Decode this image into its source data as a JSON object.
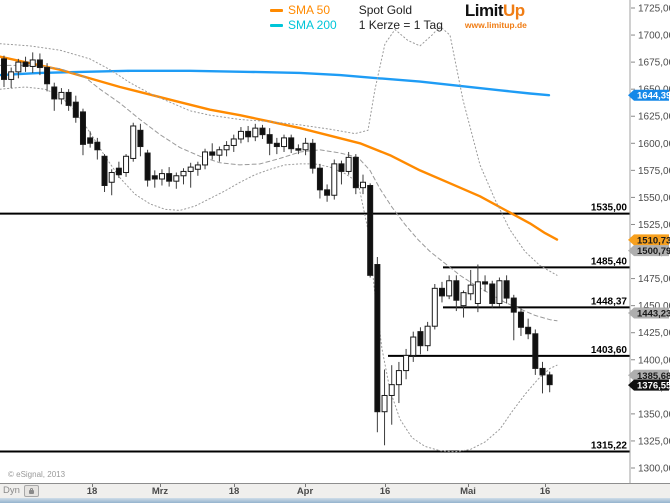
{
  "legend": {
    "sma50_label": "SMA 50",
    "sma200_label": "SMA 200",
    "symbol": "Spot Gold",
    "interval": "1 Kerze = 1 Tag"
  },
  "logo": {
    "part1": "Limit",
    "part2": "Up",
    "url": "www.limitup.de"
  },
  "footer": {
    "copyright": "© eSignal, 2013",
    "dyn_label": "Dyn"
  },
  "colors": {
    "sma50": "#ff8a00",
    "sma200_line": "#1e9cf5",
    "sma200_legend": "#00c5d8",
    "band": "#9a9a9a",
    "candle_black": "#101010",
    "candle_white": "#ffffff",
    "level_line": "#000000",
    "axis_text": "#4d4d4d",
    "axis_separator": "#a0a0a0",
    "logo_orange": "#f07d15"
  },
  "price_axis": {
    "tick_min": 1300,
    "tick_max": 1725,
    "tick_step": 25,
    "tags": [
      {
        "label": "1644,39",
        "price": 1644.39,
        "bg": "#1588e8",
        "fg": "#ffffff",
        "name": "sma200-price-tag"
      },
      {
        "label": "1510,73",
        "price": 1510.73,
        "bg": "#f7a01e",
        "fg": "#1a1a1a",
        "name": "sma50-price-tag"
      },
      {
        "label": "1500,79",
        "price": 1500.79,
        "bg": "#aeaeae",
        "fg": "#1a1a1a",
        "name": "indicator-price-tag"
      },
      {
        "label": "1443,23",
        "price": 1443.23,
        "bg": "#aeaeae",
        "fg": "#1a1a1a",
        "name": "indicator-price-tag"
      },
      {
        "label": "1385,68",
        "price": 1385.68,
        "bg": "#aeaeae",
        "fg": "#1a1a1a",
        "name": "indicator-price-tag"
      },
      {
        "label": "1376,55",
        "price": 1376.55,
        "bg": "#101010",
        "fg": "#ffffff",
        "name": "last-price-tag"
      }
    ]
  },
  "time_axis": {
    "labels": [
      {
        "text": "18",
        "x": 92
      },
      {
        "text": "Mrz",
        "x": 160
      },
      {
        "text": "18",
        "x": 234
      },
      {
        "text": "Apr",
        "x": 305
      },
      {
        "text": "16",
        "x": 385
      },
      {
        "text": "Mai",
        "x": 468
      },
      {
        "text": "16",
        "x": 545
      }
    ]
  },
  "chart_data": {
    "type": "candlestick",
    "title": "Spot Gold",
    "subtitle": "1 Kerze = 1 Tag",
    "x_tick_labels": [
      "18",
      "Mrz",
      "18",
      "Apr",
      "16",
      "Mai",
      "16"
    ],
    "y_range": [
      1292,
      1732
    ],
    "y_ticks_step": 25,
    "grid": false,
    "last_price": 1376.55,
    "levels": [
      {
        "label": "1535,00",
        "price": 1535.0,
        "x_start": 0
      },
      {
        "label": "1485,40",
        "price": 1485.4,
        "x_start": 443
      },
      {
        "label": "1448,37",
        "price": 1448.37,
        "x_start": 443
      },
      {
        "label": "1403,60",
        "price": 1403.6,
        "x_start": 388
      },
      {
        "label": "1315,22",
        "price": 1315.22,
        "x_start": 0
      }
    ],
    "candles_format": [
      "open",
      "high",
      "low",
      "close"
    ],
    "candles": [
      [
        1678,
        1681,
        1652,
        1659
      ],
      [
        1659,
        1670,
        1651,
        1666
      ],
      [
        1666,
        1678,
        1660,
        1675
      ],
      [
        1675,
        1680,
        1666,
        1671
      ],
      [
        1671,
        1684,
        1665,
        1677
      ],
      [
        1677,
        1683,
        1663,
        1670
      ],
      [
        1670,
        1674,
        1648,
        1655
      ],
      [
        1652,
        1656,
        1630,
        1641
      ],
      [
        1641,
        1651,
        1636,
        1647
      ],
      [
        1647,
        1650,
        1630,
        1635
      ],
      [
        1638,
        1644,
        1619,
        1624
      ],
      [
        1629,
        1632,
        1589,
        1599
      ],
      [
        1605,
        1611,
        1596,
        1600
      ],
      [
        1601,
        1605,
        1585,
        1594
      ],
      [
        1588,
        1590,
        1555,
        1561
      ],
      [
        1564,
        1576,
        1552,
        1573
      ],
      [
        1577,
        1583,
        1568,
        1571
      ],
      [
        1573,
        1590,
        1569,
        1588
      ],
      [
        1586,
        1619,
        1583,
        1616
      ],
      [
        1612,
        1618,
        1588,
        1597
      ],
      [
        1591,
        1594,
        1560,
        1566
      ],
      [
        1570,
        1575,
        1559,
        1567
      ],
      [
        1567,
        1576,
        1561,
        1572
      ],
      [
        1572,
        1578,
        1560,
        1565
      ],
      [
        1565,
        1573,
        1558,
        1570
      ],
      [
        1570,
        1577,
        1562,
        1574
      ],
      [
        1574,
        1582,
        1559,
        1578
      ],
      [
        1576,
        1583,
        1570,
        1580
      ],
      [
        1580,
        1595,
        1576,
        1592
      ],
      [
        1592,
        1600,
        1585,
        1589
      ],
      [
        1589,
        1597,
        1583,
        1594
      ],
      [
        1594,
        1602,
        1588,
        1598
      ],
      [
        1598,
        1608,
        1592,
        1604
      ],
      [
        1604,
        1615,
        1600,
        1611
      ],
      [
        1611,
        1616,
        1601,
        1606
      ],
      [
        1606,
        1618,
        1602,
        1614
      ],
      [
        1614,
        1617,
        1604,
        1608
      ],
      [
        1608,
        1614,
        1589,
        1600
      ],
      [
        1600,
        1605,
        1590,
        1597
      ],
      [
        1597,
        1608,
        1592,
        1605
      ],
      [
        1605,
        1608,
        1591,
        1595
      ],
      [
        1595,
        1599,
        1590,
        1594
      ],
      [
        1594,
        1605,
        1589,
        1600
      ],
      [
        1600,
        1604,
        1572,
        1577
      ],
      [
        1577,
        1581,
        1549,
        1557
      ],
      [
        1557,
        1562,
        1546,
        1552
      ],
      [
        1552,
        1585,
        1548,
        1581
      ],
      [
        1581,
        1584,
        1562,
        1574
      ],
      [
        1574,
        1592,
        1571,
        1587
      ],
      [
        1587,
        1590,
        1553,
        1559
      ],
      [
        1559,
        1571,
        1553,
        1564
      ],
      [
        1561,
        1563,
        1476,
        1478
      ],
      [
        1488,
        1495,
        1333,
        1352
      ],
      [
        1352,
        1391,
        1321,
        1367
      ],
      [
        1367,
        1395,
        1340,
        1377
      ],
      [
        1377,
        1398,
        1360,
        1390
      ],
      [
        1390,
        1410,
        1382,
        1404
      ],
      [
        1404,
        1426,
        1398,
        1421
      ],
      [
        1426,
        1430,
        1405,
        1413
      ],
      [
        1413,
        1435,
        1408,
        1431
      ],
      [
        1431,
        1470,
        1428,
        1466
      ],
      [
        1466,
        1472,
        1453,
        1459
      ],
      [
        1459,
        1478,
        1456,
        1473
      ],
      [
        1473,
        1478,
        1445,
        1455
      ],
      [
        1450,
        1464,
        1439,
        1462
      ],
      [
        1461,
        1483,
        1455,
        1469
      ],
      [
        1452,
        1488,
        1444,
        1472
      ],
      [
        1472,
        1478,
        1463,
        1470
      ],
      [
        1470,
        1473,
        1448,
        1452
      ],
      [
        1452,
        1476,
        1449,
        1473
      ],
      [
        1473,
        1478,
        1452,
        1457
      ],
      [
        1457,
        1460,
        1418,
        1444
      ],
      [
        1444,
        1448,
        1422,
        1430
      ],
      [
        1430,
        1438,
        1419,
        1424
      ],
      [
        1424,
        1428,
        1386,
        1392
      ],
      [
        1392,
        1398,
        1369,
        1386
      ],
      [
        1386,
        1389,
        1370,
        1377
      ]
    ],
    "series": [
      {
        "name": "SMA 200",
        "style": "solid",
        "color": "#1e9cf5",
        "width": 2.4,
        "points": [
          [
            0,
            1663
          ],
          [
            40,
            1665
          ],
          [
            80,
            1666
          ],
          [
            130,
            1667
          ],
          [
            190,
            1667
          ],
          [
            250,
            1666
          ],
          [
            300,
            1665
          ],
          [
            340,
            1663
          ],
          [
            380,
            1660
          ],
          [
            420,
            1657
          ],
          [
            460,
            1653
          ],
          [
            500,
            1649
          ],
          [
            530,
            1646
          ],
          [
            549,
            1644.4
          ]
        ]
      },
      {
        "name": "SMA 50",
        "style": "solid",
        "color": "#ff8a00",
        "width": 2.4,
        "points": [
          [
            0,
            1680
          ],
          [
            30,
            1674
          ],
          [
            60,
            1668
          ],
          [
            90,
            1660
          ],
          [
            120,
            1652
          ],
          [
            150,
            1645
          ],
          [
            180,
            1638
          ],
          [
            210,
            1631
          ],
          [
            240,
            1626
          ],
          [
            270,
            1620
          ],
          [
            300,
            1614
          ],
          [
            330,
            1607
          ],
          [
            360,
            1600
          ],
          [
            390,
            1589
          ],
          [
            420,
            1575
          ],
          [
            450,
            1563
          ],
          [
            480,
            1551
          ],
          [
            510,
            1536
          ],
          [
            530,
            1526
          ],
          [
            545,
            1517
          ],
          [
            557,
            1511
          ]
        ]
      },
      {
        "name": "Band oben",
        "style": "dotted",
        "color": "#9a9a9a",
        "width": 1,
        "points": [
          [
            0,
            1692
          ],
          [
            30,
            1690
          ],
          [
            60,
            1686
          ],
          [
            90,
            1678
          ],
          [
            110,
            1668
          ],
          [
            130,
            1656
          ],
          [
            150,
            1646
          ],
          [
            170,
            1638
          ],
          [
            190,
            1630
          ],
          [
            210,
            1626
          ],
          [
            240,
            1622
          ],
          [
            270,
            1620
          ],
          [
            300,
            1617
          ],
          [
            330,
            1613
          ],
          [
            355,
            1609
          ],
          [
            368,
            1612
          ],
          [
            375,
            1650
          ],
          [
            385,
            1692
          ],
          [
            395,
            1705
          ],
          [
            408,
            1695
          ],
          [
            420,
            1690
          ],
          [
            432,
            1700
          ],
          [
            440,
            1708
          ],
          [
            450,
            1700
          ],
          [
            463,
            1640
          ],
          [
            480,
            1580
          ],
          [
            495,
            1548
          ],
          [
            510,
            1520
          ],
          [
            525,
            1500
          ],
          [
            540,
            1487
          ],
          [
            557,
            1478
          ]
        ]
      },
      {
        "name": "Band mitte",
        "style": "dashed",
        "color": "#9a9a9a",
        "width": 1,
        "points": [
          [
            0,
            1672
          ],
          [
            30,
            1672
          ],
          [
            60,
            1669
          ],
          [
            85,
            1661
          ],
          [
            100,
            1650
          ],
          [
            120,
            1637
          ],
          [
            140,
            1622
          ],
          [
            160,
            1608
          ],
          [
            180,
            1596
          ],
          [
            200,
            1588
          ],
          [
            220,
            1582
          ],
          [
            240,
            1580
          ],
          [
            260,
            1581
          ],
          [
            280,
            1586
          ],
          [
            300,
            1592
          ],
          [
            320,
            1594
          ],
          [
            340,
            1591
          ],
          [
            358,
            1587
          ],
          [
            370,
            1575
          ],
          [
            380,
            1558
          ],
          [
            392,
            1541
          ],
          [
            405,
            1525
          ],
          [
            418,
            1511
          ],
          [
            430,
            1500
          ],
          [
            445,
            1489
          ],
          [
            460,
            1478
          ],
          [
            475,
            1469
          ],
          [
            490,
            1461
          ],
          [
            505,
            1453
          ],
          [
            520,
            1447
          ],
          [
            535,
            1441
          ],
          [
            550,
            1437
          ],
          [
            557,
            1436
          ]
        ]
      },
      {
        "name": "Band unten",
        "style": "dotted",
        "color": "#9a9a9a",
        "width": 1,
        "points": [
          [
            0,
            1650
          ],
          [
            25,
            1652
          ],
          [
            45,
            1650
          ],
          [
            60,
            1644
          ],
          [
            75,
            1630
          ],
          [
            90,
            1610
          ],
          [
            105,
            1588
          ],
          [
            120,
            1568
          ],
          [
            135,
            1553
          ],
          [
            150,
            1544
          ],
          [
            165,
            1539
          ],
          [
            180,
            1538
          ],
          [
            195,
            1542
          ],
          [
            210,
            1549
          ],
          [
            225,
            1556
          ],
          [
            240,
            1564
          ],
          [
            255,
            1571
          ],
          [
            270,
            1576
          ],
          [
            285,
            1580
          ],
          [
            300,
            1581
          ],
          [
            315,
            1581
          ],
          [
            330,
            1578
          ],
          [
            345,
            1572
          ],
          [
            358,
            1564
          ],
          [
            368,
            1520
          ],
          [
            375,
            1460
          ],
          [
            382,
            1410
          ],
          [
            390,
            1372
          ],
          [
            400,
            1345
          ],
          [
            412,
            1328
          ],
          [
            425,
            1320
          ],
          [
            440,
            1316
          ],
          [
            455,
            1315
          ],
          [
            470,
            1317
          ],
          [
            485,
            1324
          ],
          [
            500,
            1336
          ],
          [
            512,
            1352
          ],
          [
            525,
            1368
          ],
          [
            538,
            1382
          ],
          [
            550,
            1392
          ],
          [
            557,
            1395
          ]
        ]
      }
    ]
  }
}
